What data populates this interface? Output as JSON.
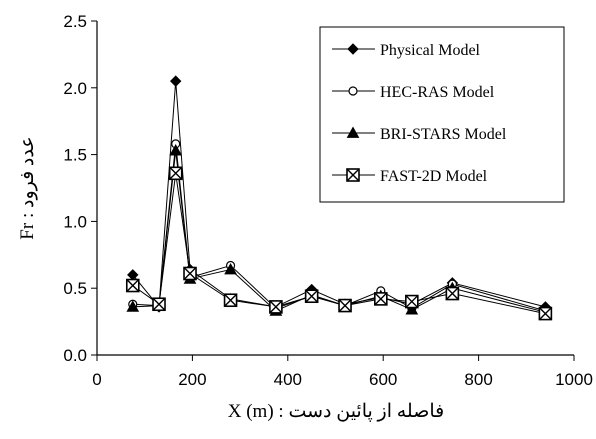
{
  "chart_data": {
    "type": "line",
    "xlabel": "X (m) : فاصله از پائین دست",
    "ylabel": "Fr : عدد فرود",
    "xlim": [
      0,
      1000
    ],
    "ylim": [
      0,
      2.5
    ],
    "xticks": [
      "0",
      "200",
      "400",
      "600",
      "800",
      "1000"
    ],
    "yticks": [
      "0.0",
      "0.5",
      "1.0",
      "1.5",
      "2.0",
      "2.5"
    ],
    "x": [
      75,
      130,
      165,
      195,
      280,
      375,
      450,
      520,
      595,
      660,
      745,
      940
    ],
    "legend_position": "top-right",
    "grid": false,
    "series": [
      {
        "name": "Physical Model",
        "marker": "diamond-filled",
        "values": [
          0.6,
          0.36,
          2.05,
          0.64,
          0.42,
          0.36,
          0.49,
          0.38,
          0.43,
          0.38,
          0.54,
          0.36
        ]
      },
      {
        "name": "HEC-RAS Model",
        "marker": "circle-open",
        "values": [
          0.38,
          0.37,
          1.58,
          0.58,
          0.67,
          0.35,
          0.44,
          0.37,
          0.48,
          0.35,
          0.53,
          0.33
        ]
      },
      {
        "name": "BRI-STARS Model",
        "marker": "triangle-filled",
        "values": [
          0.36,
          0.37,
          1.53,
          0.57,
          0.64,
          0.33,
          0.45,
          0.37,
          0.44,
          0.34,
          0.5,
          0.32
        ]
      },
      {
        "name": "FAST-2D Model",
        "marker": "square-x",
        "values": [
          0.52,
          0.38,
          1.36,
          0.61,
          0.41,
          0.36,
          0.44,
          0.37,
          0.42,
          0.4,
          0.46,
          0.31
        ]
      }
    ]
  }
}
